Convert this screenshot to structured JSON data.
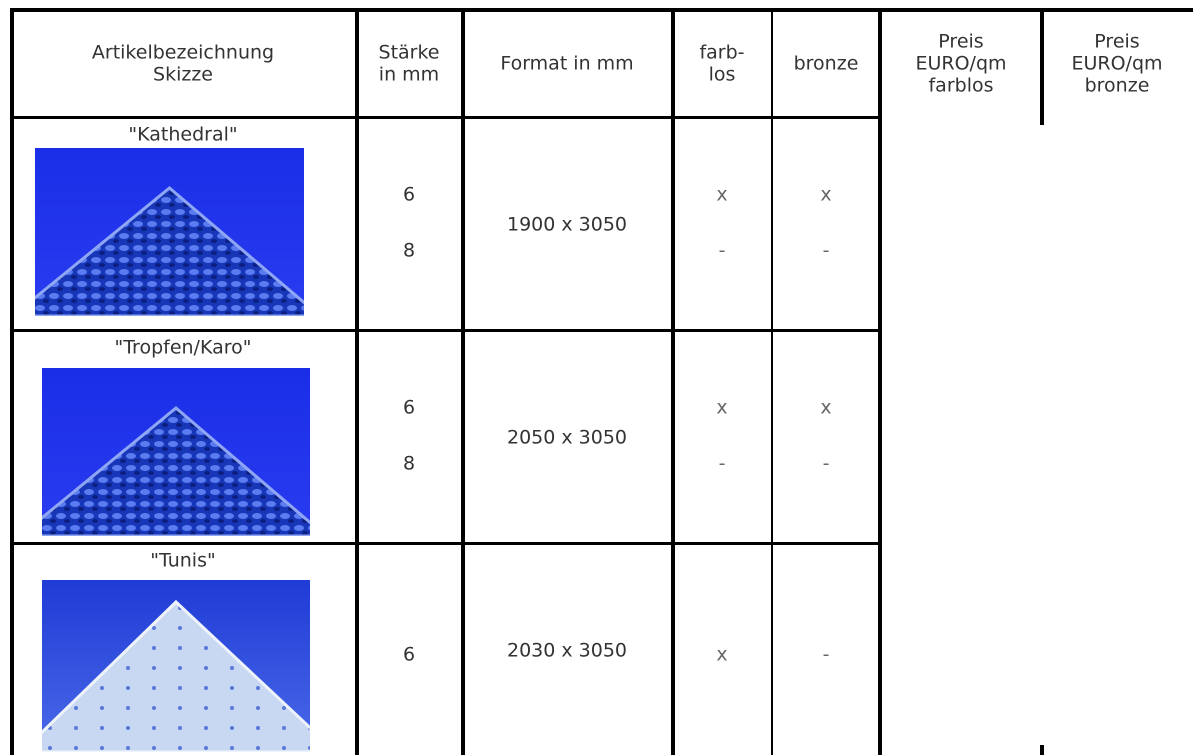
{
  "table": {
    "header": [
      [
        "Artikelbezeichnung",
        "Skizze"
      ],
      [
        "Stärke",
        "in mm"
      ],
      [
        "Format in mm"
      ],
      [
        "farb-",
        "los"
      ],
      [
        "bronze"
      ],
      [
        "Preis",
        "EURO/qm",
        "farblos"
      ],
      [
        "Preis",
        "EURO/qm",
        "bronze"
      ]
    ],
    "rows": [
      {
        "name": "\"Kathedral\"",
        "staerke": [
          6,
          8
        ],
        "format": "1900 x 3050",
        "farblos": [
          "x",
          "-"
        ],
        "bronze": [
          "x",
          "-"
        ]
      },
      {
        "name": "\"Tropfen/Karo\"",
        "staerke": [
          6,
          8
        ],
        "format": "2050 x 3050",
        "farblos": [
          "x",
          "-"
        ],
        "bronze": [
          "x",
          "-"
        ]
      },
      {
        "name": "\"Tunis\"",
        "staerke": [
          6
        ],
        "format": "2030 x 3050",
        "farblos": [
          "x"
        ],
        "bronze": [
          "-"
        ]
      }
    ]
  }
}
